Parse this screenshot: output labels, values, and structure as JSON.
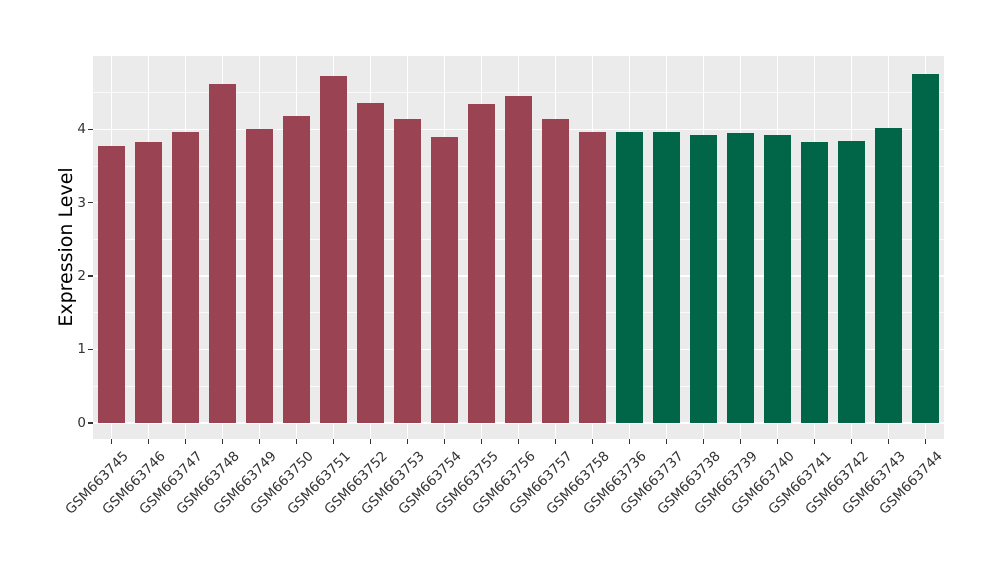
{
  "figure": {
    "background": "#FFFFFF",
    "panel_background": "#EBEBEB",
    "grid_major_color": "#FFFFFF",
    "grid_minor_color": "#FFFFFF",
    "tick_color": "#333333",
    "axis_title_color": "#000000"
  },
  "chart_data": {
    "type": "bar",
    "title": "",
    "xlabel": "",
    "ylabel": "Expression Level",
    "ylim": [
      -0.22,
      5.0
    ],
    "yticks": [
      0,
      1,
      2,
      3,
      4
    ],
    "ytick_labels": [
      "0",
      "1",
      "2",
      "3",
      "4"
    ],
    "yticks_minor": [
      0.5,
      1.5,
      2.5,
      3.5,
      4.5
    ],
    "grid": "on",
    "legend_position": "none",
    "x_label_rotation_deg": 45,
    "categories": [
      "GSM663745",
      "GSM663746",
      "GSM663747",
      "GSM663748",
      "GSM663749",
      "GSM663750",
      "GSM663751",
      "GSM663752",
      "GSM663753",
      "GSM663754",
      "GSM663755",
      "GSM663756",
      "GSM663757",
      "GSM663758",
      "GSM663736",
      "GSM663737",
      "GSM663738",
      "GSM663739",
      "GSM663740",
      "GSM663741",
      "GSM663742",
      "GSM663743",
      "GSM663744"
    ],
    "values": [
      3.77,
      3.83,
      3.97,
      4.62,
      4.0,
      4.18,
      4.73,
      4.36,
      4.14,
      3.9,
      4.35,
      4.46,
      4.14,
      3.96,
      3.97,
      3.96,
      3.93,
      3.95,
      3.92,
      3.83,
      3.84,
      4.02,
      4.76
    ],
    "bar_groups": [
      "maroon_group",
      "maroon_group",
      "maroon_group",
      "maroon_group",
      "maroon_group",
      "maroon_group",
      "maroon_group",
      "maroon_group",
      "maroon_group",
      "maroon_group",
      "maroon_group",
      "maroon_group",
      "maroon_group",
      "maroon_group",
      "green_group",
      "green_group",
      "green_group",
      "green_group",
      "green_group",
      "green_group",
      "green_group",
      "green_group",
      "green_group"
    ],
    "group_colors": {
      "maroon_group": "#9A4352",
      "green_group": "#006647"
    }
  }
}
